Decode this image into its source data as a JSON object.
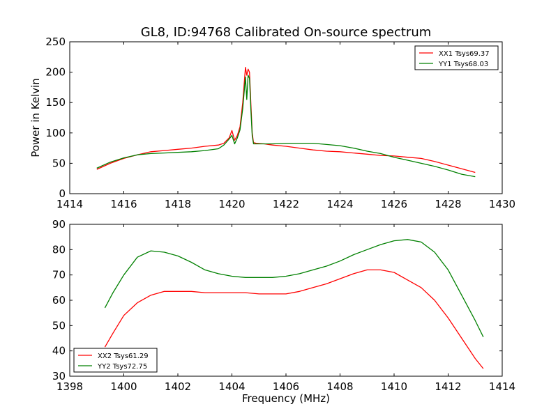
{
  "title": "GL8, ID:94768 Calibrated On-source spectrum",
  "chart_data": [
    {
      "type": "line",
      "ylabel": "Power in Kelvin",
      "xlabel": "",
      "xlim": [
        1414,
        1430
      ],
      "ylim": [
        0,
        250
      ],
      "xticks": [
        1414,
        1416,
        1418,
        1420,
        1422,
        1424,
        1426,
        1428,
        1430
      ],
      "yticks": [
        0,
        50,
        100,
        150,
        200,
        250
      ],
      "legend_position": "top-right",
      "grid": false,
      "series": [
        {
          "name": "XX1 Tsys69.37",
          "color": "#ff0000",
          "x": [
            1415.0,
            1415.5,
            1416.0,
            1416.5,
            1417.0,
            1417.5,
            1418.0,
            1418.5,
            1419.0,
            1419.5,
            1419.7,
            1419.9,
            1420.0,
            1420.1,
            1420.2,
            1420.3,
            1420.4,
            1420.5,
            1420.55,
            1420.6,
            1420.65,
            1420.7,
            1420.75,
            1420.8,
            1420.9,
            1421.2,
            1421.5,
            1422.0,
            1422.5,
            1423.0,
            1423.5,
            1424.0,
            1424.5,
            1425.0,
            1425.5,
            1426.0,
            1426.5,
            1427.0,
            1427.5,
            1428.0,
            1428.5,
            1429.0
          ],
          "values": [
            40,
            50,
            58,
            64,
            69,
            71,
            73,
            75,
            78,
            80,
            83,
            92,
            104,
            88,
            96,
            110,
            150,
            208,
            195,
            205,
            200,
            150,
            100,
            84,
            83,
            82,
            80,
            78,
            75,
            72,
            70,
            69,
            67,
            65,
            63,
            62,
            60,
            58,
            53,
            47,
            41,
            35
          ]
        },
        {
          "name": "YY1 Tsys68.03",
          "color": "#008000",
          "x": [
            1415.0,
            1415.5,
            1416.0,
            1416.5,
            1417.0,
            1417.5,
            1418.0,
            1418.5,
            1419.0,
            1419.5,
            1419.7,
            1419.9,
            1420.0,
            1420.1,
            1420.2,
            1420.3,
            1420.4,
            1420.5,
            1420.55,
            1420.6,
            1420.65,
            1420.7,
            1420.75,
            1420.8,
            1420.9,
            1421.2,
            1421.5,
            1422.0,
            1422.5,
            1423.0,
            1423.5,
            1424.0,
            1424.5,
            1425.0,
            1425.5,
            1426.0,
            1426.5,
            1427.0,
            1427.5,
            1428.0,
            1428.5,
            1429.0
          ],
          "values": [
            42,
            52,
            59,
            64,
            66,
            67,
            68,
            69,
            71,
            74,
            80,
            90,
            96,
            82,
            92,
            105,
            140,
            192,
            155,
            195,
            190,
            140,
            95,
            82,
            82,
            82,
            82,
            83,
            83,
            83,
            81,
            79,
            75,
            70,
            66,
            60,
            55,
            50,
            45,
            39,
            32,
            28
          ]
        }
      ]
    },
    {
      "type": "line",
      "ylabel": "",
      "xlabel": "Frequency (MHz)",
      "xlim": [
        1398,
        1414
      ],
      "ylim": [
        30,
        90
      ],
      "xticks": [
        1398,
        1400,
        1402,
        1404,
        1406,
        1408,
        1410,
        1412,
        1414
      ],
      "yticks": [
        30,
        40,
        50,
        60,
        70,
        80,
        90
      ],
      "legend_position": "bottom-left",
      "grid": false,
      "series": [
        {
          "name": "XX2 Tsys61.29",
          "color": "#ff0000",
          "x": [
            1399.3,
            1399.6,
            1400.0,
            1400.5,
            1401.0,
            1401.5,
            1402.0,
            1402.5,
            1403.0,
            1403.5,
            1404.0,
            1404.5,
            1405.0,
            1405.5,
            1406.0,
            1406.5,
            1407.0,
            1407.5,
            1408.0,
            1408.5,
            1409.0,
            1409.5,
            1410.0,
            1410.5,
            1411.0,
            1411.5,
            1412.0,
            1412.5,
            1413.0,
            1413.3
          ],
          "values": [
            41.5,
            47,
            54,
            59,
            62,
            63.5,
            63.5,
            63.5,
            63,
            63,
            63,
            63,
            62.5,
            62.5,
            62.5,
            63.5,
            65,
            66.5,
            68.5,
            70.5,
            72,
            72,
            71,
            68,
            65,
            60,
            53,
            45,
            37,
            33
          ]
        },
        {
          "name": "YY2 Tsys72.75",
          "color": "#008000",
          "x": [
            1399.3,
            1399.6,
            1400.0,
            1400.5,
            1401.0,
            1401.5,
            1402.0,
            1402.5,
            1403.0,
            1403.5,
            1404.0,
            1404.5,
            1405.0,
            1405.5,
            1406.0,
            1406.5,
            1407.0,
            1407.5,
            1408.0,
            1408.5,
            1409.0,
            1409.5,
            1410.0,
            1410.5,
            1411.0,
            1411.5,
            1412.0,
            1412.5,
            1413.0,
            1413.3
          ],
          "values": [
            57,
            63,
            70,
            77,
            79.5,
            79,
            77.5,
            75,
            72,
            70.5,
            69.5,
            69,
            69,
            69,
            69.5,
            70.5,
            72,
            73.5,
            75.5,
            78,
            80,
            82,
            83.5,
            84,
            83,
            79,
            72,
            62,
            52,
            45.5
          ]
        }
      ]
    }
  ]
}
